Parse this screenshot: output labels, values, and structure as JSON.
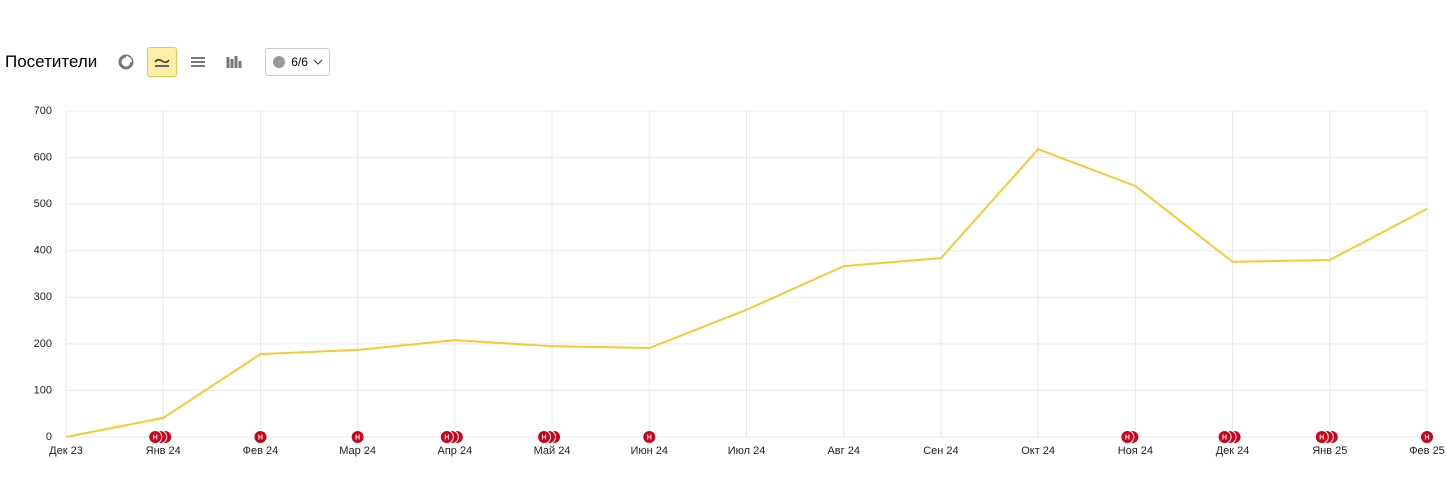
{
  "header": {
    "title": "Посетители",
    "comments_button": "6/6"
  },
  "chart_data": {
    "type": "line",
    "categories": [
      "Дек 23",
      "Янв 24",
      "Фев 24",
      "Мар 24",
      "Апр 24",
      "Май 24",
      "Июн 24",
      "Июл 24",
      "Авг 24",
      "Сен 24",
      "Окт 24",
      "Ноя 24",
      "Дек 24",
      "Янв 25",
      "Фев 25"
    ],
    "series": [
      {
        "name": "Посетители",
        "color": "#f5cb35",
        "values": [
          0,
          41,
          178,
          187,
          208,
          195,
          191,
          273,
          367,
          384,
          618,
          539,
          376,
          380,
          490
        ]
      }
    ],
    "ylim": [
      0,
      700
    ],
    "yticks": [
      0,
      100,
      200,
      300,
      400,
      500,
      600,
      700
    ],
    "grid": true,
    "annotation_color": "#d0021b",
    "annotations": [
      {
        "x": "Янв 24",
        "count": 3,
        "label": "Н"
      },
      {
        "x": "Фев 24",
        "count": 1,
        "label": "Н"
      },
      {
        "x": "Мар 24",
        "count": 1,
        "label": "Н"
      },
      {
        "x": "Апр 24",
        "count": 3,
        "label": "Н"
      },
      {
        "x": "Май 24",
        "count": 3,
        "label": "Н"
      },
      {
        "x": "Июн 24",
        "count": 1,
        "label": "Н"
      },
      {
        "x": "Ноя 24",
        "count": 2,
        "label": "Н"
      },
      {
        "x": "Дек 24",
        "count": 3,
        "label": "Н"
      },
      {
        "x": "Янв 25",
        "count": 3,
        "label": "Н"
      },
      {
        "x": "Фев 25",
        "count": 1,
        "label": "Н"
      }
    ]
  }
}
